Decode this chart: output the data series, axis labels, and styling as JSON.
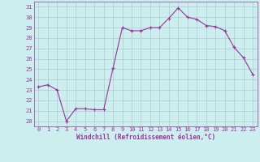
{
  "x": [
    0,
    1,
    2,
    3,
    4,
    5,
    6,
    7,
    8,
    9,
    10,
    11,
    12,
    13,
    14,
    15,
    16,
    17,
    18,
    19,
    20,
    21,
    22,
    23
  ],
  "y": [
    23.3,
    23.5,
    23.0,
    20.0,
    21.2,
    21.2,
    21.1,
    21.1,
    25.1,
    29.0,
    28.7,
    28.7,
    29.0,
    29.0,
    29.9,
    30.9,
    30.0,
    29.8,
    29.2,
    29.1,
    28.7,
    27.1,
    26.1,
    24.5
  ],
  "line_color": "#993399",
  "marker": "+",
  "marker_size": 3,
  "bg_color": "#cceeee",
  "grid_color": "#aacccc",
  "xlabel": "Windchill (Refroidissement éolien,°C)",
  "xlabel_color": "#993399",
  "tick_color": "#993399",
  "ylim": [
    19.5,
    31.5
  ],
  "xlim": [
    -0.5,
    23.5
  ],
  "yticks": [
    20,
    21,
    22,
    23,
    24,
    25,
    26,
    27,
    28,
    29,
    30,
    31
  ],
  "xticks": [
    0,
    1,
    2,
    3,
    4,
    5,
    6,
    7,
    8,
    9,
    10,
    11,
    12,
    13,
    14,
    15,
    16,
    17,
    18,
    19,
    20,
    21,
    22,
    23
  ]
}
